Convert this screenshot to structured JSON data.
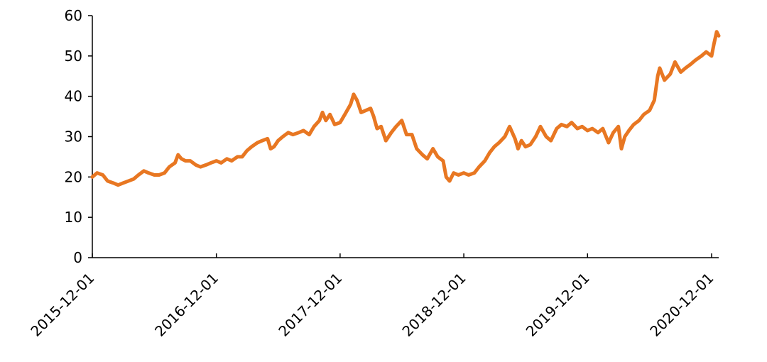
{
  "chart_data": {
    "type": "line",
    "x": [
      "2015-12-01",
      "2015-12-15",
      "2016-01-01",
      "2016-01-15",
      "2016-02-01",
      "2016-02-15",
      "2016-03-01",
      "2016-04-01",
      "2016-04-15",
      "2016-05-01",
      "2016-05-15",
      "2016-06-01",
      "2016-06-15",
      "2016-07-01",
      "2016-07-15",
      "2016-08-01",
      "2016-08-10",
      "2016-08-20",
      "2016-09-01",
      "2016-09-15",
      "2016-10-01",
      "2016-10-15",
      "2016-11-01",
      "2016-11-15",
      "2016-12-01",
      "2016-12-15",
      "2017-01-01",
      "2017-01-15",
      "2017-02-01",
      "2017-02-15",
      "2017-03-01",
      "2017-03-15",
      "2017-04-01",
      "2017-04-15",
      "2017-05-01",
      "2017-05-10",
      "2017-05-20",
      "2017-06-01",
      "2017-06-15",
      "2017-07-01",
      "2017-07-15",
      "2017-08-01",
      "2017-08-15",
      "2017-09-01",
      "2017-09-15",
      "2017-10-01",
      "2017-10-10",
      "2017-10-20",
      "2017-11-01",
      "2017-11-15",
      "2017-12-01",
      "2017-12-15",
      "2018-01-01",
      "2018-01-10",
      "2018-01-20",
      "2018-02-01",
      "2018-02-15",
      "2018-03-01",
      "2018-03-10",
      "2018-03-20",
      "2018-04-01",
      "2018-04-15",
      "2018-05-01",
      "2018-05-15",
      "2018-06-01",
      "2018-06-15",
      "2018-07-01",
      "2018-07-15",
      "2018-08-01",
      "2018-08-15",
      "2018-09-01",
      "2018-09-15",
      "2018-10-01",
      "2018-10-10",
      "2018-10-20",
      "2018-11-01",
      "2018-11-15",
      "2018-12-01",
      "2018-12-15",
      "2019-01-01",
      "2019-01-15",
      "2019-02-01",
      "2019-02-15",
      "2019-03-01",
      "2019-03-15",
      "2019-04-01",
      "2019-04-15",
      "2019-05-01",
      "2019-05-10",
      "2019-05-20",
      "2019-06-01",
      "2019-06-15",
      "2019-07-01",
      "2019-07-15",
      "2019-08-01",
      "2019-08-15",
      "2019-09-01",
      "2019-09-15",
      "2019-10-01",
      "2019-10-15",
      "2019-11-01",
      "2019-11-15",
      "2019-12-01",
      "2019-12-15",
      "2020-01-01",
      "2020-01-15",
      "2020-02-01",
      "2020-02-15",
      "2020-03-01",
      "2020-03-10",
      "2020-03-20",
      "2020-04-01",
      "2020-04-15",
      "2020-05-01",
      "2020-05-15",
      "2020-06-01",
      "2020-06-15",
      "2020-06-25",
      "2020-07-01",
      "2020-07-15",
      "2020-08-01",
      "2020-08-15",
      "2020-09-01",
      "2020-09-15",
      "2020-10-01",
      "2020-10-15",
      "2020-11-01",
      "2020-11-15",
      "2020-12-01",
      "2020-12-08",
      "2020-12-16",
      "2020-12-22"
    ],
    "series": [
      {
        "color": "#e87722",
        "values": [
          20,
          21,
          20.5,
          19,
          18.5,
          18,
          18.5,
          19.5,
          20.5,
          21.5,
          21,
          20.5,
          20.5,
          21,
          22.5,
          23.5,
          25.5,
          24.5,
          24,
          24,
          23,
          22.5,
          23,
          23.5,
          24,
          23.5,
          24.5,
          24,
          25,
          25,
          26.5,
          27.5,
          28.5,
          29,
          29.5,
          27,
          27.5,
          29,
          30,
          31,
          30.5,
          31,
          31.5,
          30.5,
          32.5,
          34,
          36,
          34,
          35.5,
          33,
          33.5,
          35.5,
          38,
          40.5,
          39,
          36,
          36.5,
          37,
          35,
          32,
          32.5,
          29,
          31,
          32.5,
          34,
          30.5,
          30.5,
          27,
          25.5,
          24.5,
          27,
          25,
          24,
          20,
          19,
          21,
          20.5,
          21,
          20.5,
          21,
          22.5,
          24,
          26,
          27.5,
          28.5,
          30,
          32.5,
          29.5,
          27,
          29,
          27.5,
          28,
          30,
          32.5,
          30,
          29,
          32,
          33,
          32.5,
          33.5,
          32,
          32.5,
          31.5,
          32,
          31,
          32,
          28.5,
          31,
          32.5,
          27,
          30,
          31.5,
          33,
          34,
          35.5,
          36.5,
          39,
          45,
          47,
          44,
          45.5,
          48.5,
          46,
          47,
          48,
          49,
          50,
          51,
          50,
          53,
          56,
          55
        ]
      }
    ],
    "xlim": [
      "2015-12-01",
      "2020-12-22"
    ],
    "xticks": [
      "2015-12-01",
      "2016-12-01",
      "2017-12-01",
      "2018-12-01",
      "2019-12-01",
      "2020-12-01"
    ],
    "ylim": [
      0,
      60
    ],
    "yticks": [
      0,
      10,
      20,
      30,
      40,
      50,
      60
    ]
  }
}
